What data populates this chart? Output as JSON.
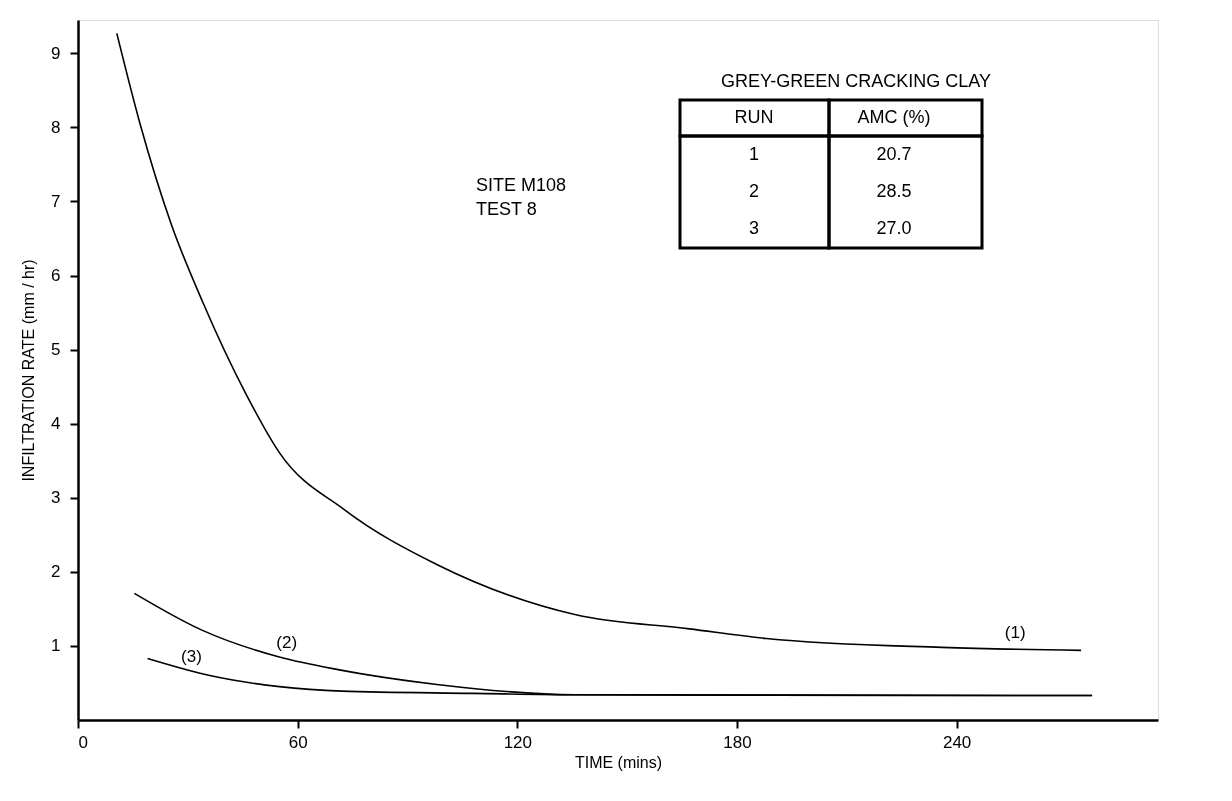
{
  "chart_data": {
    "type": "line",
    "xlabel": "TIME (mins)",
    "ylabel": "INFILTRATION RATE (mm / hr)",
    "xlim": [
      0,
      295
    ],
    "ylim": [
      0,
      9.45
    ],
    "xticks": [
      0,
      60,
      120,
      180,
      240
    ],
    "yticks": [
      1,
      2,
      3,
      4,
      5,
      6,
      7,
      8,
      9
    ],
    "grid": false,
    "legend": false,
    "marker": "none",
    "line_style": "solid",
    "series": [
      {
        "color": "#000000",
        "x": [
          10.6,
          17,
          25.5,
          34,
          46,
          55,
          73,
          98,
          136,
          167,
          188,
          236,
          274
        ],
        "values": [
          9.27,
          8.04,
          6.69,
          5.65,
          4.39,
          3.61,
          2.83,
          2.1,
          1.42,
          1.23,
          1.1,
          0.98,
          0.94
        ]
      },
      {
        "color": "#000000",
        "x": [
          15.4,
          34,
          55,
          71,
          98,
          136,
          277
        ],
        "values": [
          1.71,
          1.21,
          0.85,
          0.68,
          0.48,
          0.34,
          0.33
        ]
      },
      {
        "color": "#000000",
        "x": [
          19,
          36,
          55,
          72,
          108,
          136,
          277
        ],
        "values": [
          0.83,
          0.6,
          0.45,
          0.39,
          0.36,
          0.34,
          0.33
        ]
      }
    ],
    "annotations": [
      {
        "text": "(1)",
        "x": 256,
        "y": 0.98
      },
      {
        "text": "(2)",
        "x": 57,
        "y": 0.85
      },
      {
        "text": "(3)",
        "x": 31,
        "y": 0.66
      },
      "SITE  M108",
      "TEST 8",
      "GREY-GREEN CRACKING CLAY",
      "RUN",
      "AMC (%)",
      "1",
      "20.7",
      "2",
      "28.5",
      "3",
      "27.0"
    ]
  }
}
